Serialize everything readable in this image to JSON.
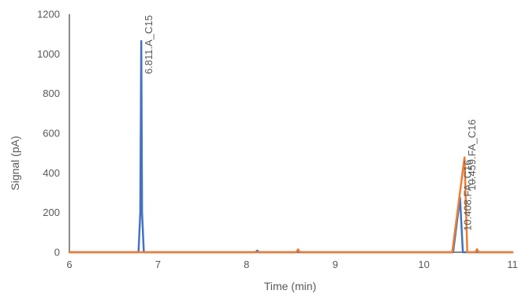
{
  "chart_data": {
    "type": "line",
    "title": "",
    "xlabel": "Time (min)",
    "ylabel": "Signal (pA)",
    "xlim": [
      6,
      11
    ],
    "ylim": [
      0,
      1200
    ],
    "xticks": [
      6,
      7,
      8,
      9,
      10,
      11
    ],
    "yticks": [
      0,
      200,
      400,
      600,
      800,
      1000,
      1200
    ],
    "grid": false,
    "legend": "none",
    "series": [
      {
        "color": "#4472C4",
        "points": [
          [
            6.0,
            0
          ],
          [
            6.78,
            0
          ],
          [
            6.8,
            200
          ],
          [
            6.811,
            1065
          ],
          [
            6.82,
            200
          ],
          [
            6.84,
            0
          ],
          [
            8.1,
            0
          ],
          [
            8.12,
            8
          ],
          [
            8.14,
            0
          ],
          [
            10.33,
            0
          ],
          [
            10.408,
            275
          ],
          [
            10.44,
            0
          ],
          [
            11.0,
            0
          ]
        ]
      },
      {
        "color": "#ED7D31",
        "points": [
          [
            6.0,
            0
          ],
          [
            8.56,
            0
          ],
          [
            8.58,
            14
          ],
          [
            8.6,
            0
          ],
          [
            10.32,
            0
          ],
          [
            10.459,
            478
          ],
          [
            10.49,
            0
          ],
          [
            10.58,
            0
          ],
          [
            10.6,
            15
          ],
          [
            10.62,
            0
          ],
          [
            11.0,
            0
          ]
        ]
      }
    ],
    "annotations": [
      {
        "text": "6.811.A_C15",
        "x": 6.811,
        "y": 1065
      },
      {
        "text": "10.408.FA_C16",
        "x": 10.408,
        "y": 275
      },
      {
        "text": "10.459.FA_C16",
        "x": 10.459,
        "y": 478
      }
    ]
  }
}
